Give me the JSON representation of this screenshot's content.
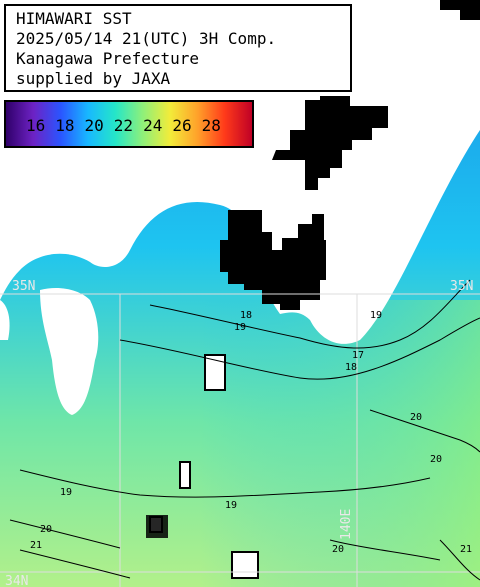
{
  "header": {
    "line1": "HIMAWARI SST",
    "line2": "2025/05/14 21(UTC) 3H Comp.",
    "line3": "Kanagawa Prefecture",
    "line4": "supplied by JAXA"
  },
  "legend": {
    "ticks": [
      "16",
      "18",
      "20",
      "22",
      "24",
      "26",
      "28"
    ],
    "colors": [
      "#30006a",
      "#6d22c4",
      "#2a55ff",
      "#18b8ff",
      "#25e6c8",
      "#8ef07a",
      "#f2ec3a",
      "#ffa22a",
      "#ff3a1a",
      "#c00026"
    ]
  },
  "grid": {
    "lat_labels": [
      "35N",
      "35N",
      "34N"
    ],
    "lon_labels": [
      "140E"
    ]
  },
  "contours": {
    "labels": [
      "17",
      "18",
      "18",
      "19",
      "19",
      "19",
      "19",
      "20",
      "20",
      "20",
      "20",
      "21",
      "21"
    ]
  },
  "colors": {
    "water_cool": "#1a8fe8",
    "water_mid": "#1ec4f0",
    "water_warm": "#6fe6a8",
    "water_warmest": "#b2f08a",
    "cloud_mask": "#000000",
    "land": "#ffffff",
    "grid_line": "#dddddd"
  }
}
